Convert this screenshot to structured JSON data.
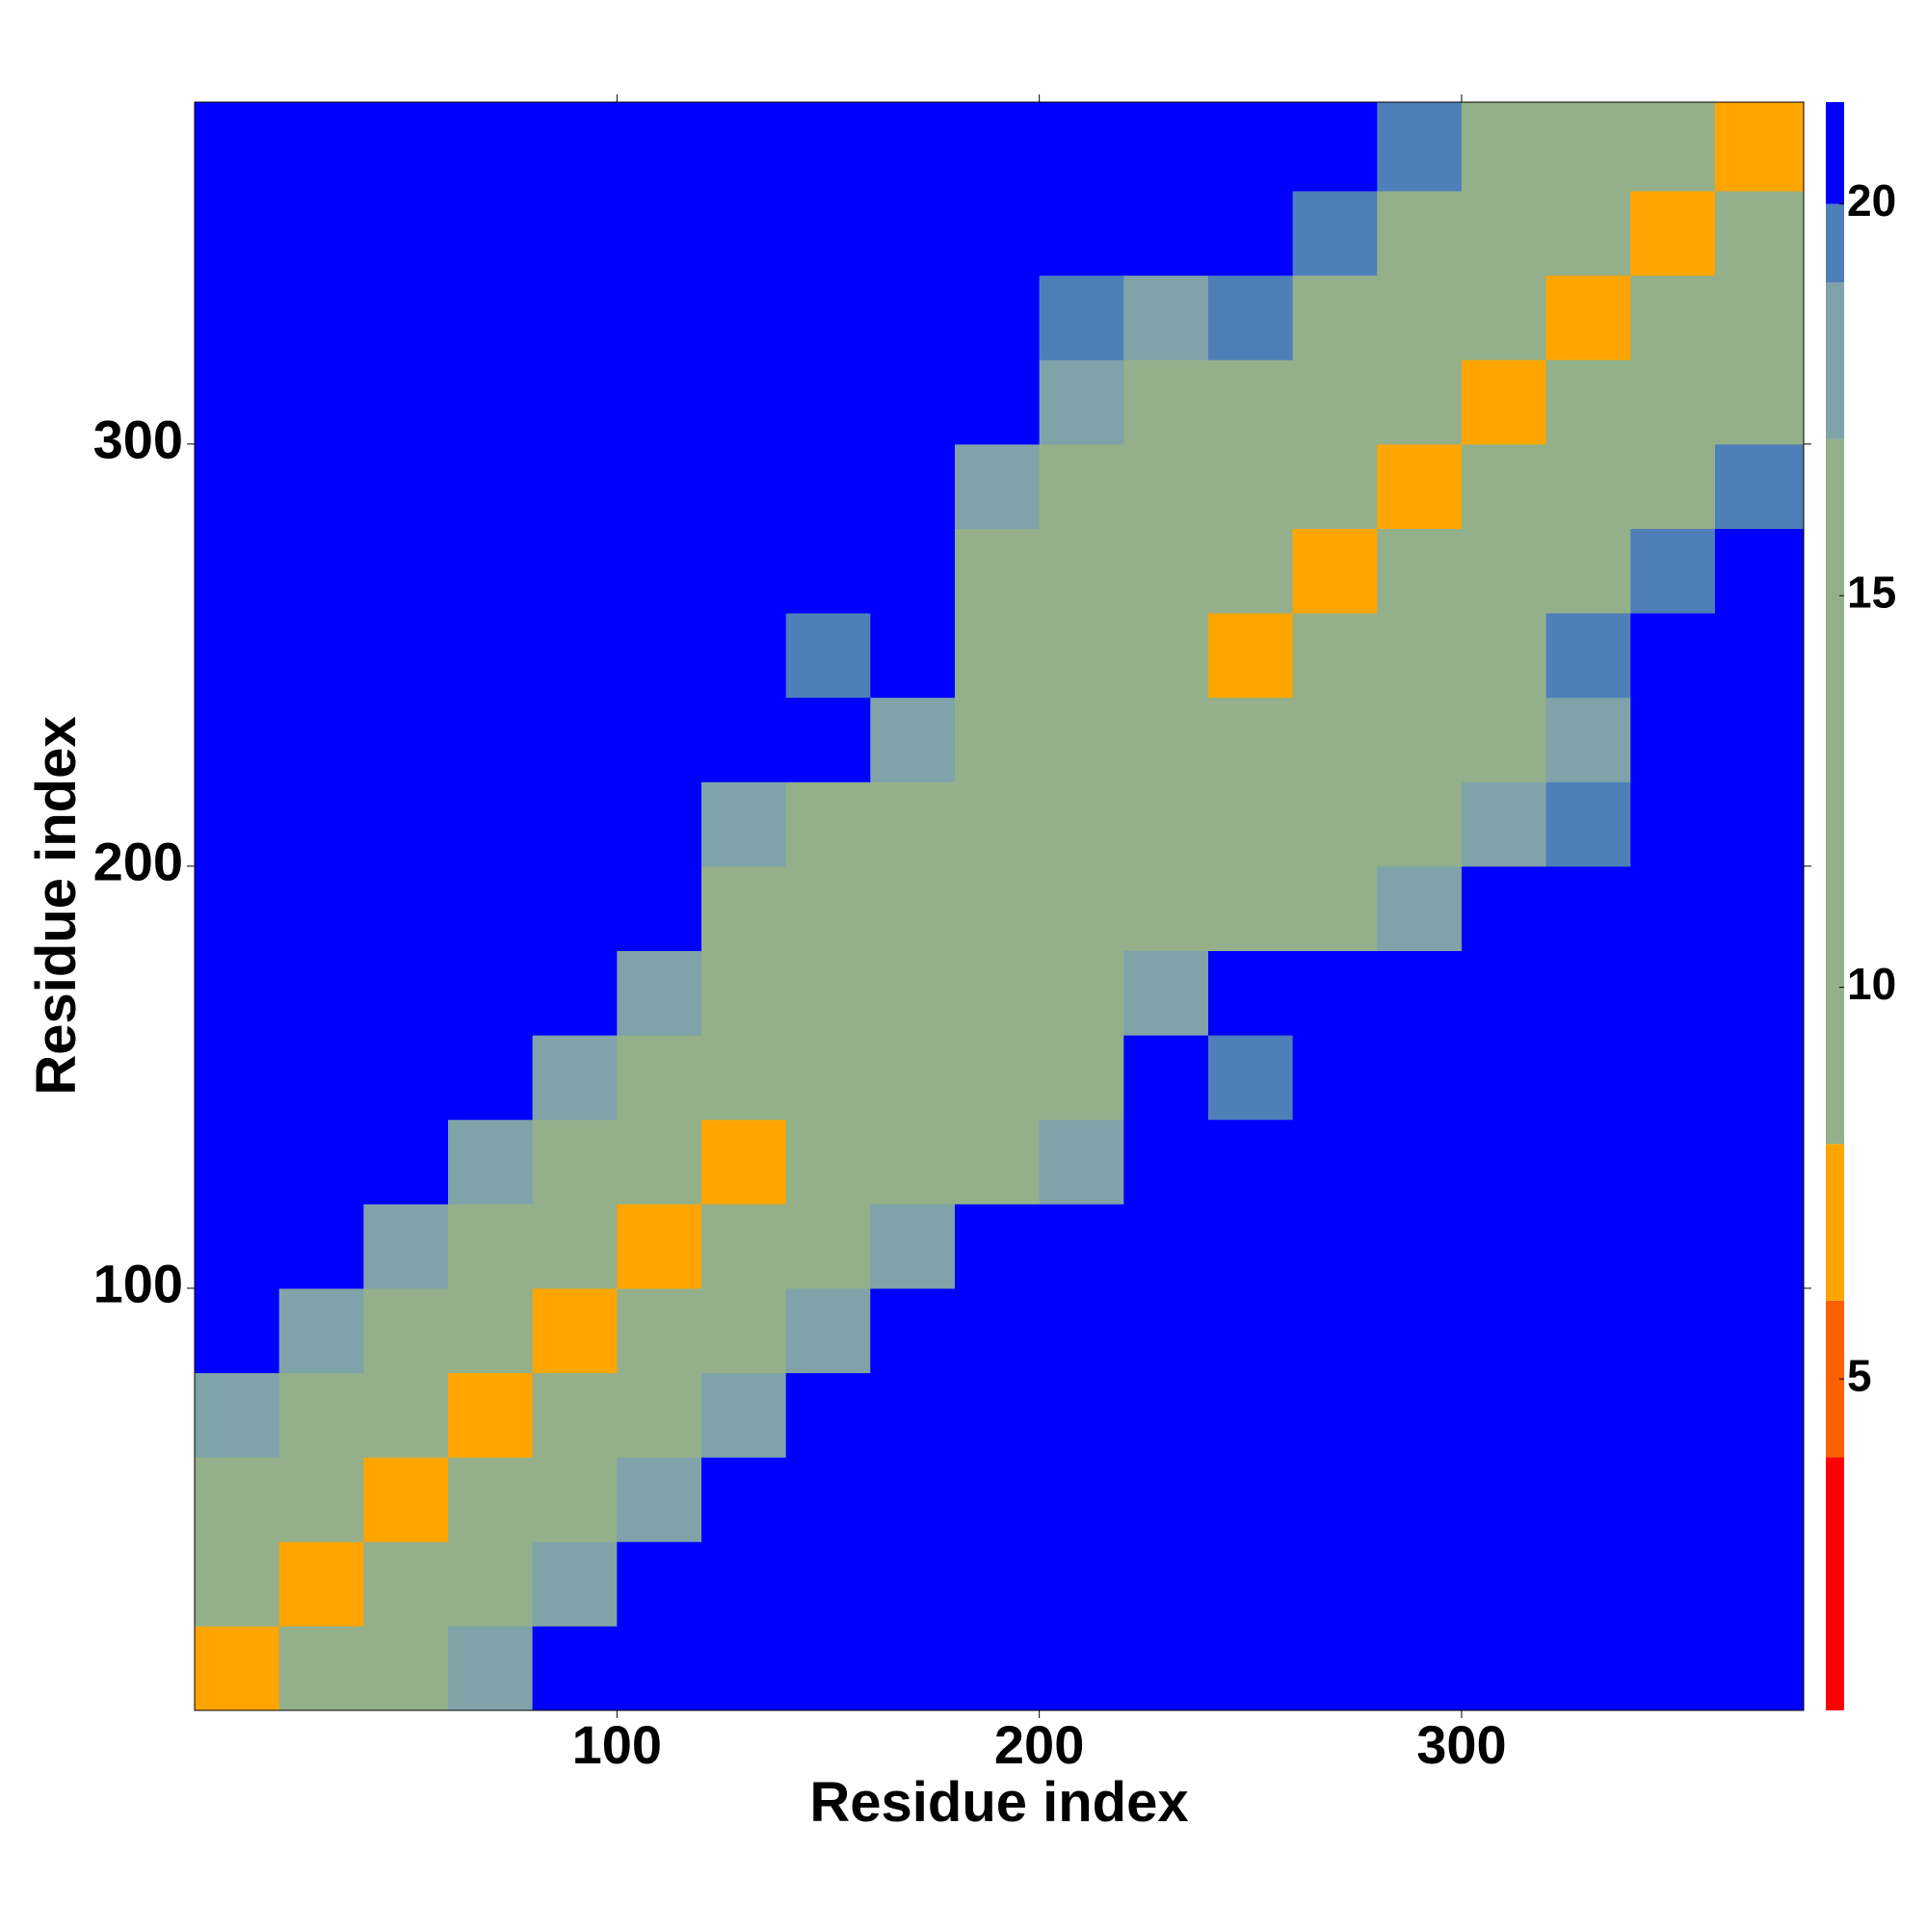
{
  "chart_data": {
    "type": "heatmap",
    "x_label": "Residue index",
    "y_label": "Residue index",
    "x_edges": [
      0,
      20,
      40,
      60,
      80,
      100,
      120,
      140,
      160,
      180,
      200,
      220,
      240,
      260,
      280,
      300,
      320,
      340,
      360,
      381
    ],
    "y_edges": [
      0,
      20,
      40,
      60,
      80,
      100,
      120,
      140,
      160,
      180,
      200,
      220,
      240,
      260,
      280,
      300,
      320,
      340,
      360,
      381
    ],
    "z": [
      [
        7,
        12,
        14,
        17,
        20,
        21,
        21,
        21,
        21,
        21,
        21,
        21,
        21,
        21,
        21,
        21,
        21,
        21,
        21
      ],
      [
        12,
        7,
        12,
        14,
        17,
        20,
        21,
        21,
        21,
        21,
        21,
        21,
        21,
        21,
        21,
        21,
        21,
        21,
        21
      ],
      [
        14,
        12,
        7,
        12,
        14,
        17,
        20,
        21,
        21,
        21,
        21,
        21,
        21,
        21,
        21,
        21,
        21,
        21,
        21
      ],
      [
        17,
        14,
        12,
        7,
        12,
        14,
        17,
        20,
        21,
        21,
        21,
        21,
        21,
        21,
        21,
        21,
        21,
        21,
        21
      ],
      [
        20,
        17,
        14,
        12,
        7,
        12,
        14,
        17,
        20,
        21,
        21,
        21,
        21,
        21,
        21,
        21,
        21,
        21,
        21
      ],
      [
        21,
        20,
        17,
        14,
        12,
        7,
        12,
        14,
        17,
        20,
        21,
        21,
        21,
        21,
        21,
        21,
        21,
        21,
        21
      ],
      [
        21,
        21,
        20,
        17,
        14,
        12,
        7,
        12,
        14,
        15,
        18,
        21,
        21,
        21,
        21,
        21,
        21,
        21,
        21
      ],
      [
        21,
        21,
        21,
        20,
        17,
        14,
        12,
        8,
        12,
        14,
        15,
        20,
        19,
        21,
        21,
        21,
        21,
        21,
        21
      ],
      [
        21,
        21,
        21,
        21,
        20,
        17,
        14,
        12,
        8,
        12,
        14,
        17,
        20,
        21,
        21,
        21,
        21,
        21,
        21
      ],
      [
        21,
        21,
        21,
        21,
        21,
        20,
        15,
        14,
        12,
        8,
        12,
        14,
        16,
        16,
        17,
        21,
        21,
        21,
        21
      ],
      [
        21,
        21,
        21,
        21,
        21,
        21,
        18,
        15,
        14,
        12,
        8,
        12,
        14,
        16,
        16,
        17,
        19,
        21,
        21
      ],
      [
        21,
        21,
        21,
        21,
        21,
        21,
        21,
        20,
        17,
        14,
        12,
        8,
        12,
        14,
        16,
        16,
        18,
        21,
        21
      ],
      [
        21,
        21,
        21,
        21,
        21,
        21,
        21,
        19,
        20,
        16,
        14,
        12,
        7,
        12,
        14,
        16,
        19,
        21,
        21
      ],
      [
        21,
        21,
        21,
        21,
        21,
        21,
        21,
        21,
        21,
        16,
        16,
        14,
        12,
        7,
        12,
        14,
        16,
        19,
        21
      ],
      [
        21,
        21,
        21,
        21,
        21,
        21,
        21,
        21,
        21,
        17,
        16,
        16,
        14,
        12,
        7,
        12,
        14,
        16,
        19
      ],
      [
        21,
        21,
        21,
        21,
        21,
        21,
        21,
        21,
        21,
        21,
        17,
        16,
        16,
        14,
        12,
        7,
        12,
        14,
        16
      ],
      [
        21,
        21,
        21,
        21,
        21,
        21,
        21,
        21,
        21,
        21,
        19,
        18,
        19,
        16,
        14,
        12,
        7,
        12,
        14
      ],
      [
        21,
        21,
        21,
        21,
        21,
        21,
        21,
        21,
        21,
        21,
        21,
        21,
        21,
        19,
        16,
        14,
        12,
        7,
        12
      ],
      [
        21,
        21,
        21,
        21,
        21,
        21,
        21,
        21,
        21,
        21,
        21,
        21,
        21,
        21,
        19,
        16,
        14,
        12,
        7
      ]
    ],
    "xlim": [
      0,
      381
    ],
    "ylim": [
      0,
      381
    ],
    "xticks": [
      100,
      200,
      300
    ],
    "yticks": [
      100,
      200,
      300
    ],
    "colorbar_lim": [
      0.77,
      21.3
    ],
    "colorbar_ticks": [
      5,
      10,
      15,
      20
    ],
    "colorscale": [
      {
        "below": 4,
        "color": "#ff0000"
      },
      {
        "below": 6,
        "color": "#ff6000"
      },
      {
        "below": 8,
        "color": "#ffa500"
      },
      {
        "below": 17,
        "color": "#93b08a"
      },
      {
        "below": 19,
        "color": "#7fa3a8"
      },
      {
        "below": 20,
        "color": "#4f7fb8"
      },
      {
        "color": "#0000ff"
      }
    ]
  }
}
